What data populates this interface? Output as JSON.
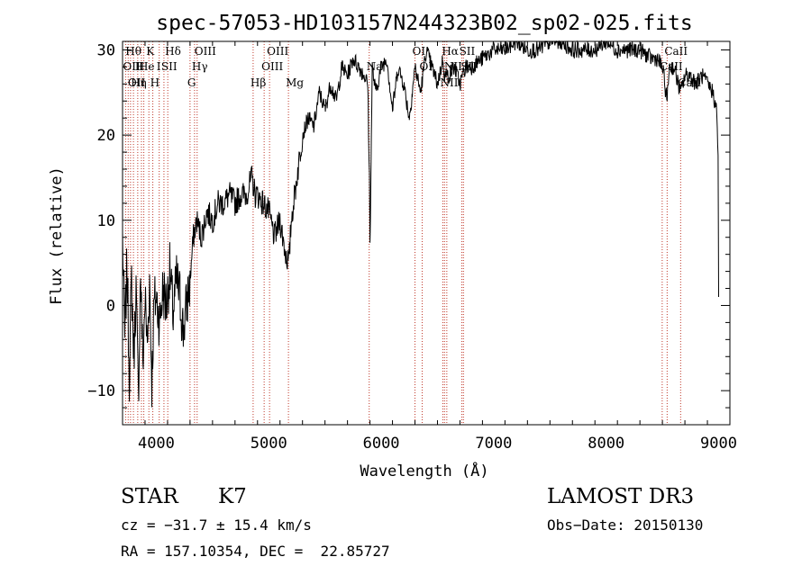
{
  "chart_data": {
    "type": "line",
    "title": "spec-57053-HD103157N244323B02_sp02-025.fits",
    "xlabel": "Wavelength (Å)",
    "ylabel": "Flux (relative)",
    "xlim": [
      3700,
      9100
    ],
    "ylim": [
      -14,
      31
    ],
    "xticks": [
      4000,
      5000,
      6000,
      7000,
      8000,
      9000
    ],
    "yticks": [
      -10,
      0,
      10,
      20,
      30
    ],
    "grid": false,
    "series": [
      {
        "x": [
          3700,
          3720,
          3740,
          3760,
          3780,
          3800,
          3820,
          3840,
          3860,
          3880,
          3900,
          3920,
          3940,
          3960,
          3980,
          4000,
          4030,
          4060,
          4090,
          4120,
          4150,
          4180,
          4210,
          4240,
          4270,
          4300,
          4330,
          4360,
          4400,
          4450,
          4500,
          4550,
          4600,
          4650,
          4700,
          4750,
          4800,
          4850,
          4880,
          4900,
          4950,
          5000,
          5050,
          5100,
          5150,
          5180,
          5200,
          5250,
          5300,
          5350,
          5400,
          5450,
          5500,
          5550,
          5600,
          5650,
          5700,
          5750,
          5800,
          5850,
          5880,
          5895,
          5900,
          5920,
          5950,
          6000,
          6050,
          6100,
          6150,
          6200,
          6250,
          6300,
          6350,
          6400,
          6450,
          6500,
          6550,
          6563,
          6600,
          6650,
          6700,
          6750,
          6800,
          6900,
          7000,
          7100,
          7200,
          7300,
          7400,
          7500,
          7600,
          7700,
          7800,
          7900,
          8000,
          8100,
          8200,
          8300,
          8400,
          8450,
          8500,
          8542,
          8560,
          8600,
          8662,
          8700,
          8750,
          8800,
          8850,
          8900,
          8950,
          8980,
          8995,
          9000
        ],
        "y": [
          8,
          -4,
          5,
          -8,
          3,
          -6,
          2,
          -11,
          4,
          -7,
          1,
          -5,
          3,
          -9,
          0,
          1,
          -2,
          2,
          0,
          4,
          -1,
          3,
          1,
          -3,
          0,
          3,
          8,
          10,
          8,
          11,
          10,
          12,
          12,
          13,
          12,
          13,
          13,
          15,
          13,
          13,
          12,
          11,
          8,
          10,
          6,
          5,
          10,
          15,
          20,
          22,
          21,
          25,
          23,
          26,
          24,
          28,
          27,
          29,
          28,
          27,
          26,
          15,
          7,
          28,
          25,
          28,
          29,
          23,
          28,
          26,
          22,
          28,
          25,
          30,
          28,
          26,
          29,
          27,
          27,
          28,
          26,
          28,
          28,
          29,
          30,
          30,
          31,
          30,
          30,
          31,
          31,
          30,
          30,
          30,
          31,
          30,
          30,
          30,
          29,
          29,
          28,
          24,
          28,
          28,
          25,
          27,
          27,
          26,
          27,
          26,
          25,
          23,
          18,
          1
        ]
      }
    ],
    "lines": [
      {
        "w": 3727,
        "lab": "OII",
        "row": 1
      },
      {
        "w": 3750,
        "lab": "Hθ",
        "row": 0
      },
      {
        "w": 3771,
        "lab": "OII",
        "row": 2
      },
      {
        "w": 3797,
        "lab": "Hη",
        "row": 2
      },
      {
        "w": 3835,
        "lab": "H",
        "row": 1
      },
      {
        "w": 3868,
        "lab": "He",
        "row": 1
      },
      {
        "w": 3889,
        "lab": "",
        "row": 1
      },
      {
        "w": 3934,
        "lab": "K",
        "row": 0
      },
      {
        "w": 3969,
        "lab": "H",
        "row": 2
      },
      {
        "w": 4026,
        "lab": "I",
        "row": 1
      },
      {
        "w": 4068,
        "lab": "SII",
        "row": 1
      },
      {
        "w": 4102,
        "lab": "Hδ",
        "row": 0
      },
      {
        "w": 4300,
        "lab": "G",
        "row": 2
      },
      {
        "w": 4340,
        "lab": "Hγ",
        "row": 1
      },
      {
        "w": 4363,
        "lab": "OIII",
        "row": 0
      },
      {
        "w": 4861,
        "lab": "Hβ",
        "row": 2
      },
      {
        "w": 4959,
        "lab": "OIII",
        "row": 1
      },
      {
        "w": 5007,
        "lab": "OIII",
        "row": 0
      },
      {
        "w": 5175,
        "lab": "Mg",
        "row": 2
      },
      {
        "w": 5893,
        "lab": "Na",
        "row": 1
      },
      {
        "w": 6300,
        "lab": "OI",
        "row": 0
      },
      {
        "w": 6364,
        "lab": "OI",
        "row": 1
      },
      {
        "w": 6548,
        "lab": "NII",
        "row": 2
      },
      {
        "w": 6563,
        "lab": "Hα",
        "row": 0
      },
      {
        "w": 6583,
        "lab": "NII",
        "row": 1
      },
      {
        "w": 6717,
        "lab": "SII",
        "row": 0
      },
      {
        "w": 6731,
        "lab": "SII",
        "row": 1
      },
      {
        "w": 8498,
        "lab": "CaII",
        "row": 1
      },
      {
        "w": 8542,
        "lab": "CaII",
        "row": 0
      },
      {
        "w": 8662,
        "lab": "CaII",
        "row": 2
      }
    ],
    "colors": {
      "spectrum": "#000000",
      "lines": "#c0392b",
      "frame": "#000000"
    }
  },
  "info": {
    "object_class": "STAR",
    "subclass": "K7",
    "cz": "cz = −31.7 ± 15.4 km/s",
    "coords": "RA = 157.10354, DEC =  22.85727",
    "survey": "LAMOST DR3",
    "obs_date": "Obs−Date: 20150130"
  }
}
